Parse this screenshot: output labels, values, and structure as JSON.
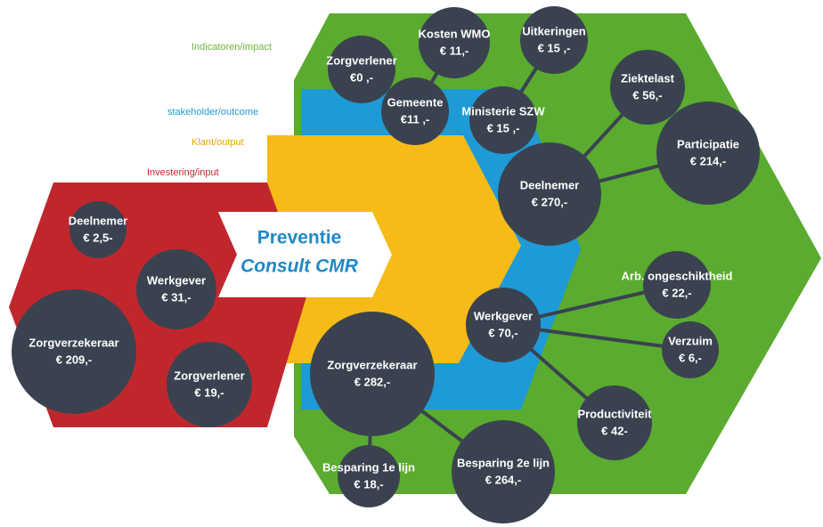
{
  "layers": [
    "Indicatoren/impact",
    "stakeholder/outcome",
    "Klant/output",
    "Investering/input"
  ],
  "center": {
    "line1": "Preventie",
    "line2": "Consult CMR"
  },
  "nodes": [
    {
      "label": "Zorgverlener",
      "value": "€0 ,-"
    },
    {
      "label": "Kosten WMO",
      "value": "€ 11,-"
    },
    {
      "label": "Uitkeringen",
      "value": "€ 15 ,-"
    },
    {
      "label": "Gemeente",
      "value": "€11 ,-"
    },
    {
      "label": "Ministerie SZW",
      "value": "€ 15 ,-"
    },
    {
      "label": "Ziektelast",
      "value": "€ 56,-"
    },
    {
      "label": "Participatie",
      "value": "€ 214,-"
    },
    {
      "label": "Deelnemer",
      "value": "€ 270,-"
    },
    {
      "label": "Arb. ongeschiktheid",
      "value": "€ 22,-"
    },
    {
      "label": "Werkgever",
      "value": "€ 70,-"
    },
    {
      "label": "Verzuim",
      "value": "€ 6,-"
    },
    {
      "label": "Productiviteit",
      "value": "€ 42-"
    },
    {
      "label": "Zorgverzekeraar",
      "value": "€ 282,-"
    },
    {
      "label": "Besparing 1e lijn",
      "value": "€ 18,-"
    },
    {
      "label": "Besparing 2e lijn",
      "value": "€ 264,-"
    },
    {
      "label": "Deelnemer",
      "value": "€ 2,5-"
    },
    {
      "label": "Werkgever",
      "value": "€ 31,-"
    },
    {
      "label": "Zorgverzekeraar",
      "value": "€ 209,-"
    },
    {
      "label": "Zorgverlener",
      "value": "€ 19,-"
    }
  ]
}
